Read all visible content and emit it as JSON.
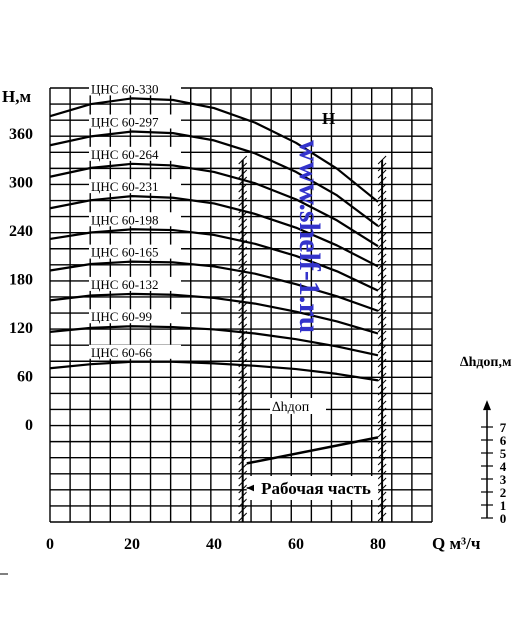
{
  "chart_data": [
    {
      "type": "line",
      "ylabel": "H,м",
      "xlabel": "Q м³/ч",
      "panel_label": "H",
      "xlim": [
        0,
        95
      ],
      "ylim": [
        -120,
        420
      ],
      "xticks": [
        "0",
        "20",
        "40",
        "60",
        "80"
      ],
      "xtick_values": [
        0,
        20,
        40,
        60,
        80
      ],
      "yticks": [
        "0",
        "60",
        "120",
        "180",
        "240",
        "300",
        "360"
      ],
      "ytick_values": [
        0,
        60,
        120,
        180,
        240,
        300,
        360
      ],
      "grid": true,
      "series": [
        {
          "name": "ЦНС 60-330",
          "x": [
            0,
            10,
            20,
            30,
            40,
            50,
            60,
            70,
            80
          ],
          "y": [
            381,
            396,
            403,
            401,
            391,
            373,
            348,
            316,
            275
          ]
        },
        {
          "name": "ЦНС 60-297",
          "x": [
            0,
            10,
            20,
            30,
            40,
            50,
            60,
            70,
            80
          ],
          "y": [
            345,
            356,
            362,
            360,
            351,
            335,
            312,
            283,
            245
          ]
        },
        {
          "name": "ЦНС 60-264",
          "x": [
            0,
            10,
            20,
            30,
            40,
            50,
            60,
            70,
            80
          ],
          "y": [
            306,
            317,
            322,
            320,
            312,
            298,
            278,
            252,
            220
          ]
        },
        {
          "name": "ЦНС 60-231",
          "x": [
            0,
            10,
            20,
            30,
            40,
            50,
            60,
            70,
            80
          ],
          "y": [
            267,
            277,
            282,
            280,
            273,
            260,
            243,
            221,
            195
          ]
        },
        {
          "name": "ЦНС 60-198",
          "x": [
            0,
            10,
            20,
            30,
            40,
            50,
            60,
            70,
            80
          ],
          "y": [
            229,
            237,
            241,
            240,
            234,
            223,
            208,
            189,
            165
          ]
        },
        {
          "name": "ЦНС 60-165",
          "x": [
            0,
            10,
            20,
            30,
            40,
            50,
            60,
            70,
            80
          ],
          "y": [
            190,
            198,
            201,
            200,
            195,
            186,
            173,
            158,
            140
          ]
        },
        {
          "name": "ЦНС 60-132",
          "x": [
            0,
            10,
            20,
            30,
            40,
            50,
            60,
            70,
            80
          ],
          "y": [
            153,
            159,
            161,
            160,
            156,
            149,
            139,
            127,
            112
          ]
        },
        {
          "name": "ЦНС 60-99",
          "x": [
            0,
            10,
            20,
            30,
            40,
            50,
            60,
            70,
            80
          ],
          "y": [
            114,
            119,
            121,
            120,
            117,
            112,
            105,
            96,
            85
          ]
        },
        {
          "name": "ЦНС 60-66",
          "x": [
            0,
            10,
            20,
            30,
            40,
            50,
            60,
            70,
            80
          ],
          "y": [
            69,
            74,
            77,
            77,
            75,
            72,
            68,
            62,
            54
          ]
        }
      ],
      "working_zone": {
        "label": "Рабочая часть",
        "x_range": [
          47,
          81
        ]
      }
    },
    {
      "type": "line",
      "series_label": "∆hдоп",
      "ylabel": "∆hдоп,м",
      "ylim": [
        0,
        8
      ],
      "yticks": [
        "0",
        "1",
        "2",
        "3",
        "4",
        "5",
        "6",
        "7"
      ],
      "ytick_values": [
        0,
        1,
        2,
        3,
        4,
        5,
        6,
        7
      ],
      "series": [
        {
          "x": [
            48,
            80
          ],
          "y": [
            4.2,
            6.2
          ]
        }
      ]
    }
  ],
  "watermark": "www.shelf-1.ru",
  "colors": {
    "ink": "#000000",
    "watermark": "#3333cc",
    "background": "#ffffff"
  }
}
